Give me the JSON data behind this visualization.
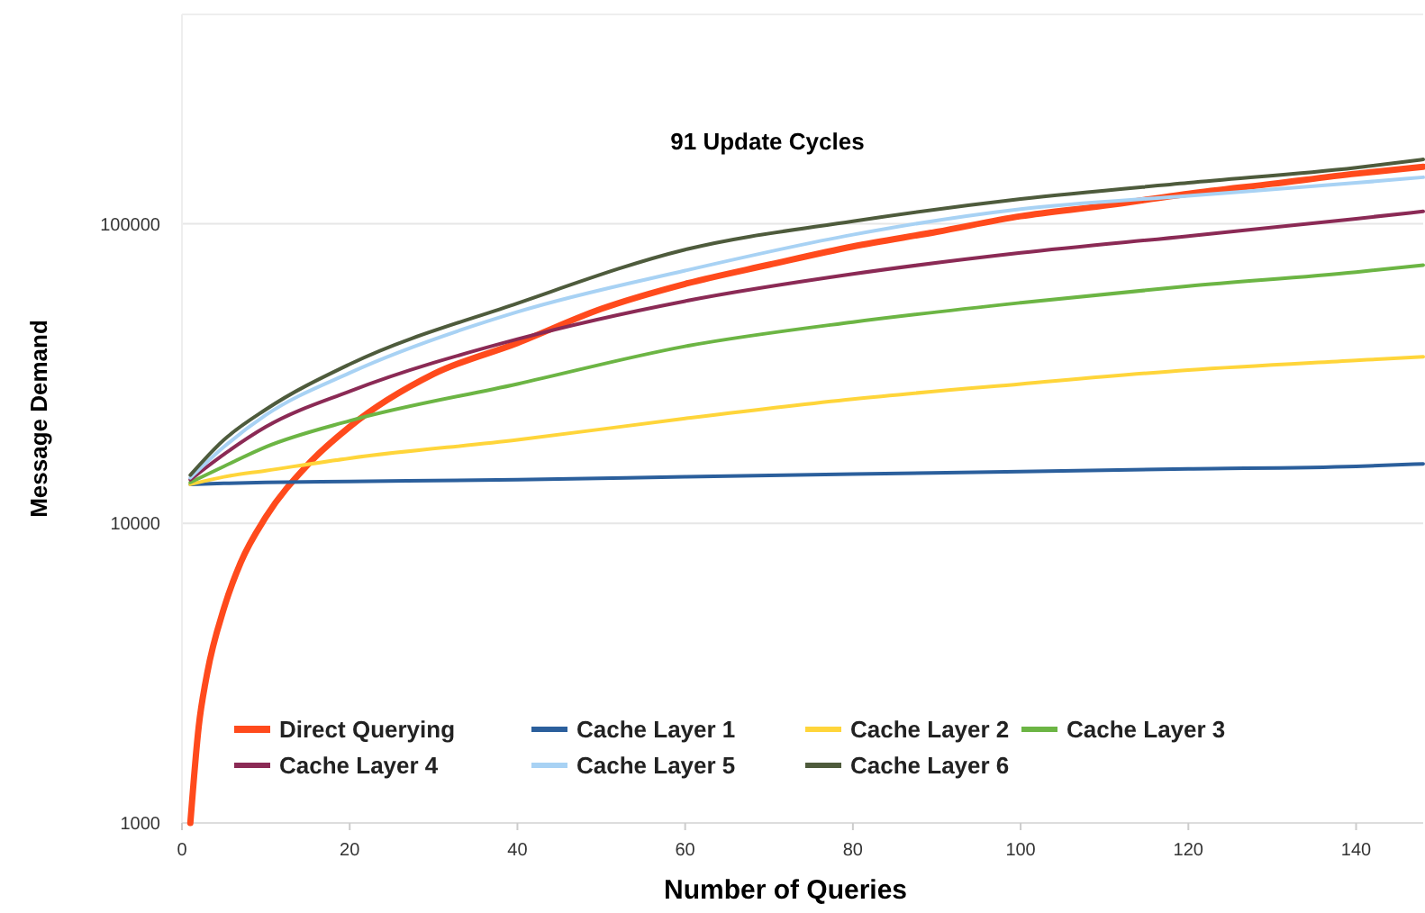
{
  "chart_data": {
    "type": "line",
    "title": "91 Update Cycles",
    "xlabel": "Number of Queries",
    "ylabel": "Message Demand",
    "log": "y",
    "grid": "y",
    "legend": "bottom",
    "marker": "none",
    "line_style": "solid",
    "xlim": [
      0,
      148
    ],
    "xticks": [
      0,
      20,
      40,
      60,
      80,
      100,
      120,
      140
    ],
    "ylim": [
      1000,
      500000
    ],
    "yticks": [
      1000,
      10000,
      100000
    ],
    "x": [
      1,
      5,
      10,
      20,
      40,
      60,
      80,
      100,
      120,
      140,
      148
    ],
    "series": [
      {
        "name": "Direct Querying",
        "color": "#ff4a1c",
        "x": [
          1,
          2,
          3,
          5,
          7,
          10,
          15,
          20,
          30,
          40,
          50,
          60,
          70,
          80,
          90,
          100,
          110,
          120,
          130,
          140,
          148
        ],
        "values": [
          1000,
          2100,
          3150,
          5200,
          7400,
          10500,
          15700,
          21000,
          31500,
          40000,
          52000,
          63000,
          73000,
          84000,
          94000,
          106000,
          115000,
          126000,
          136000,
          147000,
          155000
        ]
      },
      {
        "name": "Cache Layer 1",
        "color": "#2b5f9c",
        "values": [
          13500,
          13600,
          13700,
          13800,
          14000,
          14300,
          14600,
          14900,
          15200,
          15500,
          15800
        ]
      },
      {
        "name": "Cache Layer 2",
        "color": "#ffd53a",
        "values": [
          13500,
          14300,
          15000,
          16500,
          19000,
          22400,
          26000,
          29200,
          32500,
          35000,
          36000
        ]
      },
      {
        "name": "Cache Layer 3",
        "color": "#6cb544",
        "values": [
          13700,
          15500,
          18000,
          22000,
          29200,
          39000,
          47000,
          54500,
          62000,
          69000,
          72800
        ]
      },
      {
        "name": "Cache Layer 4",
        "color": "#8b2a55",
        "values": [
          14000,
          17000,
          21000,
          27600,
          41200,
          55200,
          68000,
          80000,
          91000,
          104000,
          110000
        ]
      },
      {
        "name": "Cache Layer 5",
        "color": "#a8d2f4",
        "values": [
          14200,
          18000,
          23000,
          31800,
          50800,
          69800,
          92000,
          112000,
          124000,
          137000,
          143000
        ]
      },
      {
        "name": "Cache Layer 6",
        "color": "#4e5b3c",
        "values": [
          14500,
          19000,
          24000,
          34000,
          54300,
          82000,
          102000,
          121000,
          137000,
          154000,
          164000
        ]
      }
    ]
  }
}
